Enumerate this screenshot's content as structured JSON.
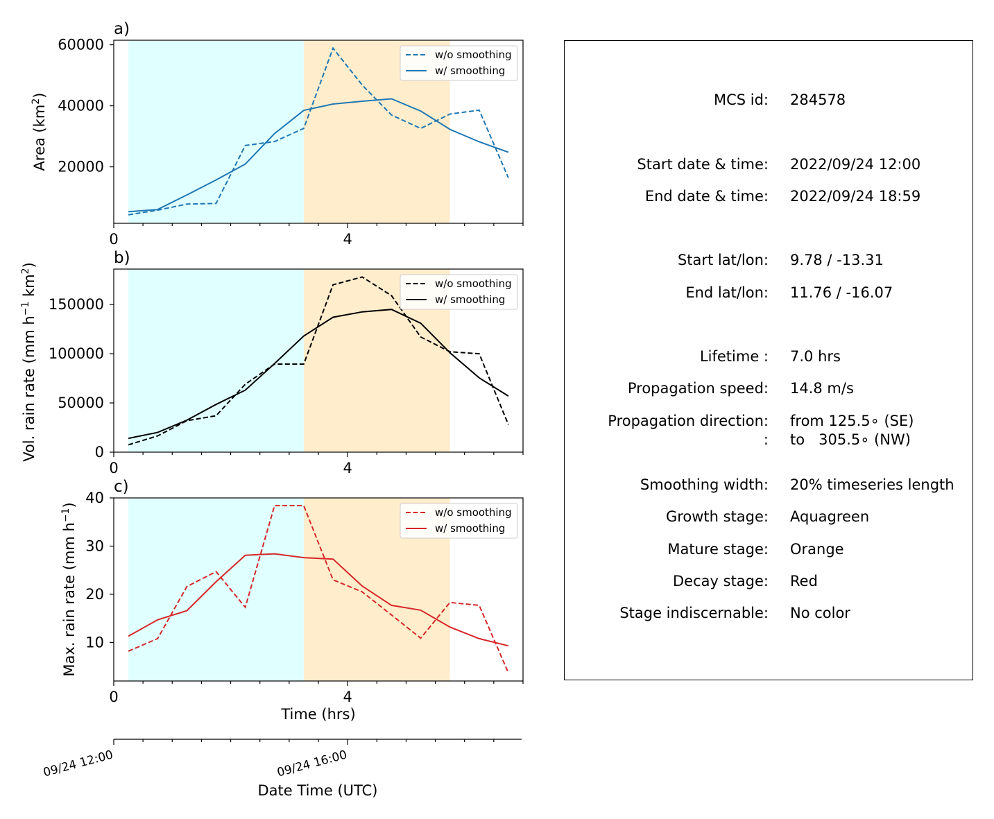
{
  "colors": {
    "growth": "#e0ffff",
    "mature": "#ffedcc",
    "area": "#1f77b4",
    "vol": "#000000",
    "max": "#d62728"
  },
  "x_axis": {
    "ticks": [
      "0",
      "4"
    ],
    "xlabel": "Time (hrs)"
  },
  "date_axis": {
    "ticks": [
      "09/24 12:00",
      "09/24 16:00"
    ],
    "label": "Date Time (UTC)"
  },
  "panels": [
    {
      "letter": "a)",
      "ylabel_main": "Area  (km",
      "ylabel_sup": "2",
      "ylabel_tail": ")",
      "ytick_labels": [
        "20000",
        "40000",
        "60000"
      ],
      "legend": [
        "w/o smoothing",
        "w/ smoothing"
      ]
    },
    {
      "letter": "b)",
      "ylabel_main": "Vol. rain rate (mm h",
      "ylabel_sup": "−1",
      "ylabel_mid": " km",
      "ylabel_sup2": "2",
      "ylabel_tail": ")",
      "ytick_labels": [
        "0",
        "50000",
        "100000",
        "150000"
      ],
      "legend": [
        "w/o smoothing",
        "w/ smoothing"
      ]
    },
    {
      "letter": "c)",
      "ylabel_main": "Max. rain rate  (mm h",
      "ylabel_sup": "−1",
      "ylabel_tail": ")",
      "ytick_labels": [
        "10",
        "20",
        "30",
        "40"
      ],
      "legend": [
        "w/o smoothing",
        "w/ smoothing"
      ]
    }
  ],
  "chart_data": [
    {
      "type": "line",
      "ylabel": "Area  (km2)",
      "xlim": [
        0,
        7
      ],
      "ylim": [
        1500,
        61500
      ],
      "yticks": [
        20000,
        40000,
        60000
      ],
      "xticks": [
        0,
        4
      ],
      "shaded_regions": [
        {
          "stage": "growth",
          "x": [
            0.25,
            3.25
          ],
          "color": "#e0ffff"
        },
        {
          "stage": "mature",
          "x": [
            3.25,
            5.75
          ],
          "color": "#ffedcc"
        }
      ],
      "legend_position": "top-right",
      "x": [
        0.25,
        0.75,
        1.25,
        1.75,
        2.25,
        2.75,
        3.25,
        3.75,
        4.25,
        4.75,
        5.25,
        5.75,
        6.25,
        6.75
      ],
      "series": [
        {
          "name": "w/o smoothing",
          "style": "dashed",
          "color": "#1f77b4",
          "values": [
            4300,
            5800,
            7800,
            8000,
            27000,
            28300,
            32600,
            58900,
            46800,
            37000,
            32600,
            37300,
            38600,
            16400
          ]
        },
        {
          "name": "w/ smoothing",
          "style": "solid",
          "color": "#1f77b4",
          "values": [
            5300,
            6000,
            10800,
            15700,
            20900,
            30900,
            38500,
            40600,
            41500,
            42300,
            38300,
            32300,
            28200,
            24800
          ]
        }
      ]
    },
    {
      "type": "line",
      "ylabel": "Vol. rain rate (mm h−1 km2)",
      "xlim": [
        0,
        7
      ],
      "ylim": [
        0,
        186000
      ],
      "yticks": [
        0,
        50000,
        100000,
        150000
      ],
      "xticks": [
        0,
        4
      ],
      "shaded_regions": [
        {
          "stage": "growth",
          "x": [
            0.25,
            3.25
          ],
          "color": "#e0ffff"
        },
        {
          "stage": "mature",
          "x": [
            3.25,
            5.75
          ],
          "color": "#ffedcc"
        }
      ],
      "legend_position": "top-right",
      "x": [
        0.25,
        0.75,
        1.25,
        1.75,
        2.25,
        2.75,
        3.25,
        3.75,
        4.25,
        4.75,
        5.25,
        5.75,
        6.25,
        6.75
      ],
      "series": [
        {
          "name": "w/o smoothing",
          "style": "dashed",
          "color": "#000000",
          "values": [
            7500,
            16500,
            32000,
            37000,
            69000,
            89500,
            89500,
            170000,
            178000,
            159000,
            117000,
            102000,
            100000,
            28000
          ]
        },
        {
          "name": "w/ smoothing",
          "style": "solid",
          "color": "#000000",
          "values": [
            14000,
            20000,
            32500,
            48500,
            63000,
            90000,
            118000,
            137000,
            142500,
            145000,
            131000,
            101000,
            75500,
            57000
          ]
        }
      ]
    },
    {
      "type": "line",
      "ylabel": "Max. rain rate  (mm h−1)",
      "xlim": [
        0,
        7
      ],
      "ylim": [
        2,
        40
      ],
      "yticks": [
        10,
        20,
        30,
        40
      ],
      "xticks": [
        0,
        4
      ],
      "shaded_regions": [
        {
          "stage": "growth",
          "x": [
            0.25,
            3.25
          ],
          "color": "#e0ffff"
        },
        {
          "stage": "mature",
          "x": [
            3.25,
            5.75
          ],
          "color": "#ffedcc"
        }
      ],
      "legend_position": "top-right",
      "x": [
        0.25,
        0.75,
        1.25,
        1.75,
        2.25,
        2.75,
        3.25,
        3.75,
        4.25,
        4.75,
        5.25,
        5.75,
        6.25,
        6.75
      ],
      "series": [
        {
          "name": "w/o smoothing",
          "style": "dashed",
          "color": "#d62728",
          "values": [
            8.2,
            10.8,
            21.6,
            24.7,
            17.3,
            38.4,
            38.4,
            23.0,
            20.5,
            15.7,
            10.9,
            18.3,
            17.7,
            3.7
          ]
        },
        {
          "name": "w/ smoothing",
          "style": "solid",
          "color": "#d62728",
          "values": [
            11.3,
            14.7,
            16.6,
            22.6,
            28.1,
            28.4,
            27.6,
            27.3,
            21.7,
            17.7,
            16.7,
            13.2,
            10.8,
            9.3
          ]
        }
      ]
    }
  ],
  "info": [
    {
      "label": "MCS id:",
      "value": "284578"
    },
    {
      "label": "Start date & time:",
      "value": "2022/09/24 12:00"
    },
    {
      "label": "End date & time:",
      "value": "2022/09/24 18:59"
    },
    {
      "label": "Start lat/lon:",
      "value": "9.78 / -13.31"
    },
    {
      "label": "End lat/lon:",
      "value": "11.76 / -16.07"
    },
    {
      "label": "Lifetime :",
      "value": "7.0 hrs"
    },
    {
      "label": "Propagation speed:",
      "value": "14.8 m/s"
    },
    {
      "label": "Propagation direction:",
      "value": "from 125.5∘ (SE)"
    },
    {
      "label": ":",
      "value": "to   305.5∘ (NW)"
    },
    {
      "label": "Smoothing width:",
      "value": "20% timeseries length"
    },
    {
      "label": "Growth stage:",
      "value": "Aquagreen"
    },
    {
      "label": "Mature stage:",
      "value": "Orange"
    },
    {
      "label": "Decay stage:",
      "value": "Red"
    },
    {
      "label": "Stage indiscernable:",
      "value": "No color"
    }
  ]
}
